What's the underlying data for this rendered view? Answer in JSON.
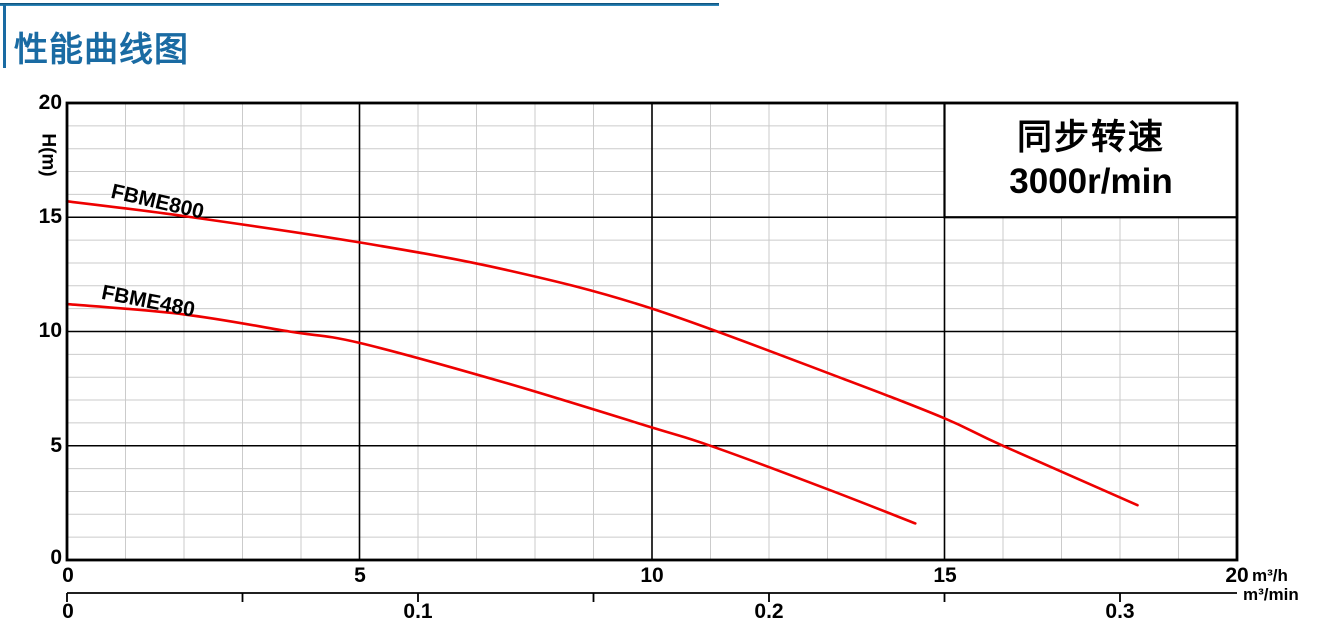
{
  "header": {
    "title": "性能曲线图",
    "accent_color": "#1a6ba3"
  },
  "chart_data": {
    "type": "line",
    "title": "性能曲线图",
    "annotation": {
      "line1": "同步转速",
      "line2": "3000r/min"
    },
    "y_axis": {
      "label": "H(m)",
      "min": 0,
      "max": 20,
      "minor_step": 1,
      "major_step": 5,
      "tick_labels": [
        "20",
        "15",
        "10",
        "5",
        "0"
      ]
    },
    "x_axis": {
      "unit": "m³/h",
      "min": 0,
      "max": 20,
      "minor_step": 1,
      "major_step": 5,
      "tick_labels": [
        "0",
        "5",
        "10",
        "15",
        "20"
      ]
    },
    "x2_axis": {
      "unit": "m³/min",
      "min": 0,
      "max": 0.3,
      "tick_step": 0.05,
      "scale_to_primary": 60,
      "tick_values": [
        0,
        0.05,
        0.1,
        0.15,
        0.2,
        0.25,
        0.3
      ],
      "tick_labels": [
        "0",
        "0.1",
        "0.2",
        "0.3"
      ]
    },
    "grid": {
      "minor_on": true,
      "major_on": true
    },
    "annotation_region": {
      "x": [
        15,
        20
      ],
      "y": [
        15,
        20
      ]
    },
    "series": [
      {
        "name": "FBME800",
        "color": "#ee0000",
        "points": [
          [
            0,
            15.7
          ],
          [
            2,
            15.05
          ],
          [
            5,
            13.9
          ],
          [
            7.5,
            12.7
          ],
          [
            10,
            11.0
          ],
          [
            13.3,
            7.9
          ],
          [
            15,
            6.2
          ],
          [
            16,
            5.0
          ],
          [
            18.3,
            2.4
          ]
        ]
      },
      {
        "name": "FBME480",
        "color": "#ee0000",
        "points": [
          [
            0,
            11.2
          ],
          [
            2,
            10.75
          ],
          [
            3.8,
            10.0
          ],
          [
            5,
            9.5
          ],
          [
            7.5,
            7.75
          ],
          [
            10,
            5.8
          ],
          [
            11,
            5.0
          ],
          [
            13,
            3.1
          ],
          [
            14.5,
            1.6
          ]
        ]
      }
    ],
    "style": {
      "curve_color": "#ee0000",
      "grid_minor_color": "#cbcbcb",
      "grid_major_color": "#000000",
      "border_color": "#000000"
    }
  }
}
